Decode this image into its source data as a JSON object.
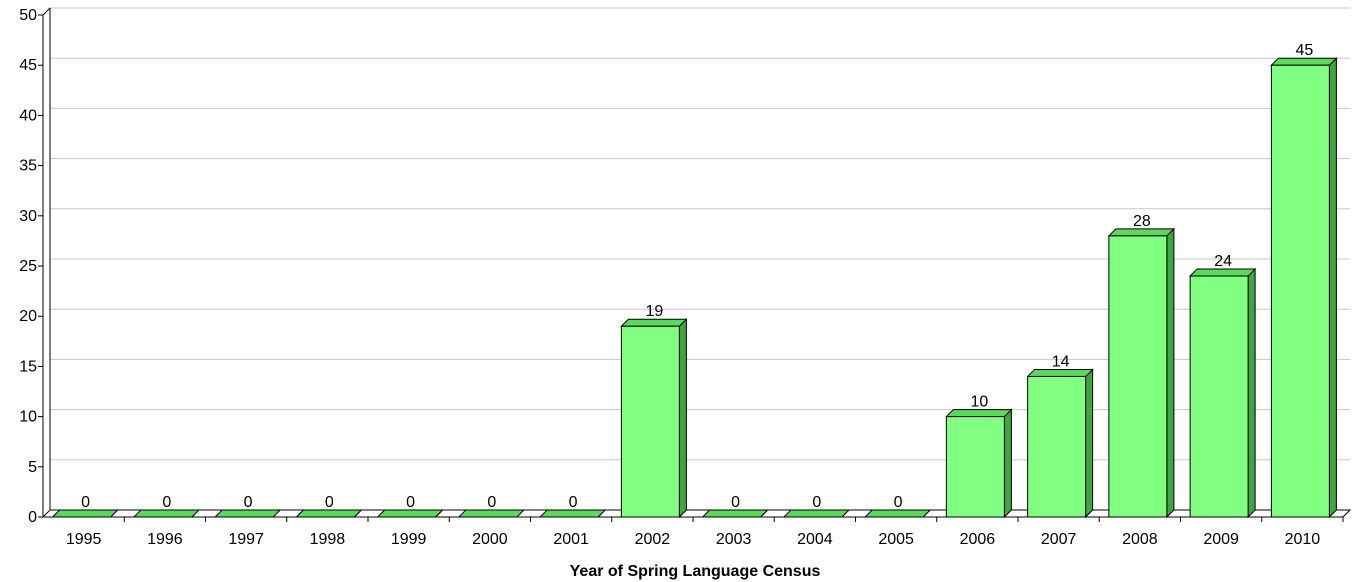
{
  "chart_data": {
    "type": "bar",
    "title": "",
    "xlabel": "Year of Spring Language Census",
    "ylabel": "",
    "categories": [
      "1995",
      "1996",
      "1997",
      "1998",
      "1999",
      "2000",
      "2001",
      "2002",
      "2003",
      "2004",
      "2005",
      "2006",
      "2007",
      "2008",
      "2009",
      "2010"
    ],
    "values": [
      0,
      0,
      0,
      0,
      0,
      0,
      0,
      19,
      0,
      0,
      0,
      10,
      14,
      28,
      24,
      45
    ],
    "ylim": [
      0,
      50
    ],
    "yticks": [
      0,
      5,
      10,
      15,
      20,
      25,
      30,
      35,
      40,
      45,
      50
    ],
    "grid": true,
    "legend": "none",
    "bar_color": "#80ff80",
    "bar_top_color": "#5cd95c",
    "bar_side_color": "#3fa63f",
    "bar_outline_color": "#000000",
    "grid_color": "#c8c8c8"
  }
}
